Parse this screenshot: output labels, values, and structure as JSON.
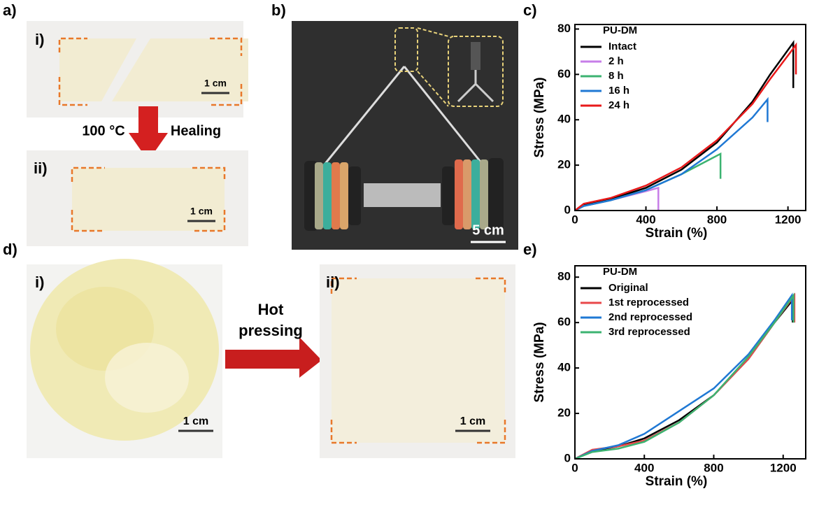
{
  "panel_labels": [
    "a)",
    "b)",
    "c)",
    "d)",
    "e)"
  ],
  "panel_a": {
    "top_label": "i)",
    "bottom_label": "ii)",
    "top_scale": "1 cm",
    "bottom_scale": "1 cm",
    "arrow_left": "100 °C",
    "arrow_right": "Healing"
  },
  "panel_b": {
    "scale": "5 cm"
  },
  "panel_d": {
    "left_label": "i)",
    "right_label": "ii)",
    "left_scale": "1 cm",
    "right_scale": "1 cm",
    "arrow_line1": "Hot",
    "arrow_line2": "pressing"
  },
  "chart_data": [
    {
      "type": "line",
      "xlabel": "Strain (%)",
      "ylabel": "Stress (MPa)",
      "legend_title": "PU-DM",
      "xlim": [
        0,
        1300
      ],
      "ylim": [
        0,
        82
      ],
      "xticks": [
        0,
        400,
        800,
        1200
      ],
      "yticks": [
        0,
        20,
        40,
        60,
        80
      ],
      "series": [
        {
          "name": "Intact",
          "color": "#000000",
          "x": [
            0,
            50,
            200,
            400,
            600,
            800,
            1000,
            1100,
            1230,
            1230
          ],
          "values": [
            0,
            2.5,
            5,
            10,
            18,
            30,
            48,
            60,
            74,
            54
          ]
        },
        {
          "name": "2 h",
          "color": "#c77ee8",
          "x": [
            0,
            50,
            200,
            400,
            470,
            470
          ],
          "values": [
            0,
            2,
            4.5,
            8.5,
            10,
            0
          ]
        },
        {
          "name": "8 h",
          "color": "#3cb371",
          "x": [
            0,
            50,
            200,
            400,
            600,
            820,
            820
          ],
          "values": [
            0,
            2,
            4.5,
            9,
            16,
            25,
            14
          ]
        },
        {
          "name": "16 h",
          "color": "#1f78d4",
          "x": [
            0,
            50,
            200,
            400,
            600,
            800,
            1000,
            1085,
            1085
          ],
          "values": [
            0,
            2,
            4.5,
            9,
            16,
            27,
            41,
            49,
            39
          ]
        },
        {
          "name": "24 h",
          "color": "#e8191a",
          "x": [
            0,
            50,
            200,
            400,
            600,
            800,
            1000,
            1100,
            1245,
            1245
          ],
          "values": [
            0,
            3,
            5.5,
            11,
            19,
            31,
            47,
            58,
            73,
            60
          ]
        }
      ]
    },
    {
      "type": "line",
      "xlabel": "Strain (%)",
      "ylabel": "Stress (MPa)",
      "legend_title": "PU-DM",
      "xlim": [
        0,
        1330
      ],
      "ylim": [
        0,
        85
      ],
      "xticks": [
        0,
        400,
        800,
        1200
      ],
      "yticks": [
        0,
        20,
        40,
        60,
        80
      ],
      "series": [
        {
          "name": "Original",
          "color": "#000000",
          "x": [
            0,
            100,
            250,
            400,
            600,
            800,
            1000,
            1150,
            1255,
            1255
          ],
          "values": [
            0,
            3.5,
            5.5,
            9,
            17,
            28,
            44,
            60,
            70,
            60
          ]
        },
        {
          "name": "1st reprocessed",
          "color": "#e8474a",
          "x": [
            0,
            100,
            250,
            400,
            600,
            800,
            1000,
            1150,
            1265,
            1265
          ],
          "values": [
            0,
            4,
            5.5,
            8,
            16,
            28,
            44,
            60,
            72,
            60
          ]
        },
        {
          "name": "2nd reprocessed",
          "color": "#1f78d4",
          "x": [
            0,
            100,
            250,
            400,
            600,
            800,
            1000,
            1150,
            1250,
            1250
          ],
          "values": [
            0,
            3.5,
            6,
            11,
            21,
            31,
            46,
            61,
            72,
            61
          ]
        },
        {
          "name": "3rd reprocessed",
          "color": "#3cb371",
          "x": [
            0,
            100,
            250,
            400,
            600,
            800,
            1000,
            1150,
            1260,
            1260
          ],
          "values": [
            0,
            3,
            4.5,
            7.5,
            16,
            28,
            45,
            60,
            72,
            60
          ]
        }
      ]
    }
  ]
}
